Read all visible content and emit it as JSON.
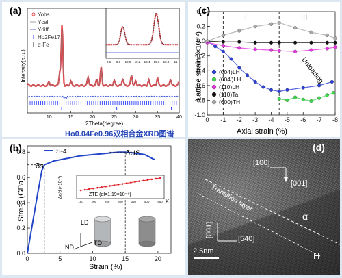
{
  "panel_a": {
    "label": "(a)",
    "caption": "Ho0.04Fe0.96双相合金XRD图谱",
    "ylabel": "Intensity(a.u.)",
    "xlabel": "2Theta(degree)",
    "xticks": [
      "10",
      "15",
      "20",
      "25",
      "30",
      "35",
      "40"
    ],
    "legend": [
      "Yobs",
      "Ycal",
      "Ydiff.",
      "Ho2Fe17",
      "α-Fe"
    ],
    "inset_xticks": [
      "9.6",
      "9.8",
      "10.0",
      "10.2",
      "10.4",
      "10.6",
      "10.8",
      "11"
    ],
    "colors": {
      "obs": "#e0242a",
      "cal": "#8a8a8a",
      "diff": "#2a46d6",
      "bragg": "#3040ff"
    }
  },
  "panel_b": {
    "label": "(b)",
    "legend": "S-4",
    "ylabel": "Stress (GPa)",
    "xlabel": "Strain (%)",
    "ann_s": "δs",
    "ann_us": "δUS",
    "inset_ylabel": "Δd/d (×10⁻³)",
    "inset_text": "ZTE (αl=1.19×10⁻⁶)",
    "inset_unit": "K",
    "inset_xticks": [
      "150",
      "200",
      "250",
      "300",
      "350",
      "400",
      "450"
    ],
    "axes": [
      "LD",
      "TD",
      "ND"
    ],
    "colors": {
      "curve": "#2246c8",
      "inset": "#e0242a"
    }
  },
  "panel_c": {
    "label": "(c)",
    "ylabel": "Lattice strain (×10⁻²)",
    "xlabel": "Axial strain (%)",
    "regions": [
      "I",
      "II",
      "III"
    ],
    "unloading": "Unloading",
    "legend": [
      "(004)LH",
      "(004')LH",
      "(110)LH",
      "(110)Ta",
      "(600)TH"
    ],
    "colors": [
      "#2b3fd8",
      "#3ad84a",
      "#e536e0",
      "#111111",
      "#a9a9a9"
    ]
  },
  "panel_d": {
    "label": "(d)",
    "dir1": "[100]",
    "dir2": "[001]",
    "layer": "Transition layer",
    "dir3": "[001]",
    "dir4": "[540]",
    "alpha": "α",
    "H": "H",
    "scale": "2.5nm"
  },
  "chart_data": [
    {
      "type": "line",
      "panel": "a",
      "x_label": "2Theta(degree)",
      "y_label": "Intensity(a.u.)",
      "xlim": [
        5,
        40
      ],
      "series": [
        {
          "name": "Yobs",
          "x": [
            5,
            10,
            12.5,
            13,
            15,
            19,
            21,
            22,
            25,
            27,
            29,
            30,
            33,
            35,
            38,
            40
          ],
          "y": [
            0.02,
            0.05,
            0.2,
            0.85,
            0.06,
            0.12,
            0.08,
            0.25,
            0.07,
            0.1,
            0.15,
            0.06,
            0.07,
            0.1,
            0.09,
            0.05
          ]
        }
      ]
    },
    {
      "type": "line",
      "panel": "b",
      "x_label": "Strain (%)",
      "y_label": "Stress (GPa)",
      "xlim": [
        0,
        22
      ],
      "ylim": [
        0,
        0.85
      ],
      "yticks": [
        0.0,
        0.2,
        0.4,
        0.6,
        0.8
      ],
      "xticks": [
        0,
        5,
        10,
        15,
        20
      ],
      "series": [
        {
          "name": "S-4",
          "x": [
            0,
            1.5,
            2.2,
            2.6,
            4,
            6,
            8,
            10,
            12,
            14,
            15,
            16,
            18,
            19.5
          ],
          "y": [
            0,
            0.45,
            0.65,
            0.7,
            0.73,
            0.75,
            0.77,
            0.78,
            0.79,
            0.8,
            0.8,
            0.795,
            0.78,
            0.74
          ]
        }
      ],
      "inset": {
        "x": [
          150,
          200,
          250,
          300,
          350,
          400,
          450
        ],
        "y": [
          0.0,
          0.06,
          0.12,
          0.18,
          0.24,
          0.3,
          0.36
        ]
      }
    },
    {
      "type": "scatter",
      "panel": "c",
      "x_label": "Axial strain (%)",
      "y_label": "Lattice strain (×10⁻²)",
      "xlim": [
        0,
        -8
      ],
      "ylim": [
        -1.0,
        0.4
      ],
      "yticks": [
        0.4,
        0.2,
        0.0,
        -0.2,
        -0.4,
        -0.6,
        -0.8,
        -1.0
      ],
      "xticks": [
        0,
        -1,
        -2,
        -3,
        -4,
        -5,
        -6,
        -7,
        -8
      ],
      "series": [
        {
          "name": "(004)LH",
          "x": [
            0,
            -0.5,
            -1,
            -1.5,
            -2,
            -2.5,
            -3,
            -3.5,
            -4,
            -4.5,
            -5,
            -6,
            -7,
            -7.8
          ],
          "y": [
            0,
            -0.07,
            -0.14,
            -0.24,
            -0.36,
            -0.46,
            -0.55,
            -0.62,
            -0.66,
            -0.68,
            -0.66,
            -0.63,
            -0.6,
            -0.55
          ]
        },
        {
          "name": "(004')LH",
          "x": [
            -4.5,
            -5,
            -5.5,
            -6,
            -6.5,
            -7,
            -7.5,
            -7.9
          ],
          "y": [
            -0.78,
            -0.8,
            -0.76,
            -0.79,
            -0.81,
            -0.77,
            -0.73,
            -0.7
          ]
        },
        {
          "name": "(110)LH",
          "x": [
            0,
            -1,
            -2,
            -3,
            -4,
            -4.5,
            -5.5,
            -6.5,
            -7.5,
            -8
          ],
          "y": [
            -0.02,
            -0.06,
            -0.09,
            -0.11,
            -0.12,
            -0.13,
            -0.14,
            -0.12,
            -0.1,
            -0.08
          ]
        },
        {
          "name": "(110)Ta",
          "x": [
            0,
            -1,
            -2,
            -3,
            -4,
            -4.5,
            -5.5,
            -6.5,
            -7.5,
            -8
          ],
          "y": [
            0,
            -0.01,
            -0.01,
            -0.02,
            -0.02,
            -0.02,
            -0.02,
            -0.02,
            -0.02,
            -0.02
          ]
        },
        {
          "name": "(600)TH",
          "x": [
            0,
            -1,
            -2,
            -3,
            -4,
            -4.5,
            -5.5,
            -6.5,
            -7.5,
            -8
          ],
          "y": [
            0,
            0.08,
            0.14,
            0.2,
            0.23,
            0.25,
            0.18,
            0.12,
            0.08,
            0.04
          ]
        }
      ]
    }
  ]
}
